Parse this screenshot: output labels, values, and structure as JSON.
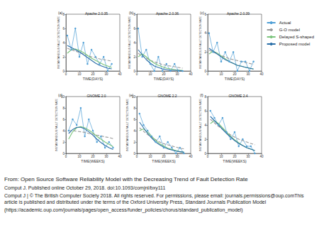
{
  "chart_data": [
    {
      "type": "line",
      "label": "(a)",
      "title": "Apache 2.0.35",
      "x_label": "TIME(DAYS)",
      "y_label": "INSTANTANEOUS FAULT DETECTION RATE",
      "legend": "right",
      "grid": false,
      "x": [
        1,
        4,
        7,
        10,
        13,
        16,
        19,
        22,
        25,
        28,
        31,
        34
      ],
      "xlim": [
        0,
        40
      ],
      "xticks": [
        0,
        10,
        20,
        30,
        40
      ],
      "ylim": [
        0,
        8
      ],
      "yticks": [
        0,
        2,
        4,
        6,
        8
      ],
      "series": [
        {
          "name": "Actual",
          "color": "#4f9fd6",
          "marker": "circle",
          "line_style": "solid",
          "values": [
            5,
            3,
            6,
            2,
            4,
            1,
            3,
            2,
            1,
            2,
            0,
            1
          ]
        },
        {
          "name": "G-O model",
          "color": "#9a9a9a",
          "marker": "none",
          "line_style": "dashed",
          "values": [
            3.2,
            3.0,
            2.8,
            2.6,
            2.4,
            2.2,
            2.0,
            1.9,
            1.7,
            1.6,
            1.5,
            1.4
          ]
        },
        {
          "name": "Delayed S-shaped",
          "color": "#7cc47c",
          "marker": "none",
          "line_style": "solid",
          "values": [
            2.5,
            3.0,
            3.1,
            2.9,
            2.6,
            2.2,
            1.8,
            1.5,
            1.2,
            0.9,
            0.7,
            0.5
          ]
        },
        {
          "name": "Proposed model",
          "color": "#2a6fa8",
          "marker": "none",
          "line_style": "solid",
          "values": [
            3.6,
            3.3,
            3.0,
            2.7,
            2.3,
            1.9,
            1.5,
            1.1,
            0.8,
            0.6,
            0.4,
            0.3
          ]
        }
      ]
    },
    {
      "type": "line",
      "label": "(b)",
      "title": "Apache 2.0.36",
      "x_label": "TIME(DAYS)",
      "y_label": "INSTANTANEOUS FAULT DETECTION RATE",
      "grid": false,
      "x": [
        1,
        4,
        7,
        10,
        13,
        16,
        19,
        22,
        25,
        28,
        31,
        34
      ],
      "xlim": [
        0,
        40
      ],
      "xticks": [
        0,
        10,
        20,
        30,
        40
      ],
      "ylim": [
        0,
        8
      ],
      "yticks": [
        0,
        2,
        4,
        6,
        8
      ],
      "series": [
        {
          "name": "Actual",
          "color": "#4f9fd6",
          "marker": "circle",
          "line_style": "solid",
          "values": [
            6,
            2,
            3,
            1,
            0,
            2,
            0,
            1,
            0,
            1,
            0,
            0
          ]
        },
        {
          "name": "G-O model",
          "color": "#9a9a9a",
          "marker": "none",
          "line_style": "dashed",
          "values": [
            2.5,
            2.1,
            1.8,
            1.5,
            1.3,
            1.1,
            0.9,
            0.8,
            0.7,
            0.6,
            0.5,
            0.4
          ]
        },
        {
          "name": "Delayed S-shaped",
          "color": "#7cc47c",
          "marker": "none",
          "line_style": "solid",
          "values": [
            2.0,
            2.4,
            2.0,
            1.5,
            1.1,
            0.8,
            0.6,
            0.4,
            0.3,
            0.2,
            0.1,
            0.1
          ]
        },
        {
          "name": "Proposed model",
          "color": "#2a6fa8",
          "marker": "none",
          "line_style": "solid",
          "values": [
            3.0,
            2.3,
            1.6,
            1.1,
            0.7,
            0.5,
            0.3,
            0.2,
            0.1,
            0.1,
            0.1,
            0.0
          ]
        }
      ]
    },
    {
      "type": "line",
      "label": "(c)",
      "title": "Apache 2.0.39",
      "x_label": "TIME(DAYS)",
      "y_label": "INSTANTANEOUS FAULT DETECTION RATE",
      "grid": false,
      "x": [
        1,
        4,
        7,
        10,
        13,
        16,
        19,
        22,
        25,
        28,
        31,
        34
      ],
      "xlim": [
        0,
        40
      ],
      "xticks": [
        0,
        10,
        20,
        30,
        40
      ],
      "ylim": [
        0,
        6
      ],
      "yticks": [
        0,
        2,
        4,
        6
      ],
      "series": [
        {
          "name": "Actual",
          "color": "#4f9fd6",
          "marker": "circle",
          "line_style": "solid",
          "values": [
            4,
            2,
            3,
            1,
            2,
            1,
            2,
            0,
            1,
            1,
            0,
            1
          ]
        },
        {
          "name": "G-O model",
          "color": "#9a9a9a",
          "marker": "none",
          "line_style": "dashed",
          "values": [
            2.2,
            2.0,
            1.8,
            1.6,
            1.5,
            1.3,
            1.2,
            1.1,
            1.0,
            0.9,
            0.8,
            0.7
          ]
        },
        {
          "name": "Delayed S-shaped",
          "color": "#7cc47c",
          "marker": "none",
          "line_style": "solid",
          "values": [
            1.8,
            2.1,
            1.9,
            1.6,
            1.3,
            1.0,
            0.8,
            0.6,
            0.5,
            0.4,
            0.3,
            0.2
          ]
        },
        {
          "name": "Proposed model",
          "color": "#2a6fa8",
          "marker": "none",
          "line_style": "solid",
          "values": [
            2.4,
            2.1,
            1.8,
            1.5,
            1.2,
            1.0,
            0.8,
            0.6,
            0.5,
            0.4,
            0.3,
            0.2
          ]
        }
      ]
    },
    {
      "type": "line",
      "label": "(d)",
      "title": "GNOME 2.0",
      "x_label": "TIME(WEEKS)",
      "y_label": "INSTANTANEOUS FAULT DETECTION RATE",
      "grid": false,
      "x": [
        2,
        5,
        8,
        11,
        14,
        17,
        20,
        23,
        26,
        29,
        32,
        35
      ],
      "xlim": [
        0,
        40
      ],
      "xticks": [
        0,
        10,
        20,
        30,
        40
      ],
      "ylim": [
        0,
        10
      ],
      "yticks": [
        0,
        2,
        4,
        6,
        8,
        10
      ],
      "series": [
        {
          "name": "Actual",
          "color": "#4f9fd6",
          "marker": "circle",
          "line_style": "solid",
          "values": [
            4,
            6,
            5,
            8,
            3,
            6,
            4,
            2,
            3,
            1,
            2,
            1
          ]
        },
        {
          "name": "G-O model",
          "color": "#9a9a9a",
          "marker": "none",
          "line_style": "dashed",
          "values": [
            4.0,
            4.0,
            3.9,
            3.8,
            3.7,
            3.5,
            3.4,
            3.2,
            3.1,
            2.9,
            2.8,
            2.6
          ]
        },
        {
          "name": "Delayed S-shaped",
          "color": "#7cc47c",
          "marker": "none",
          "line_style": "solid",
          "values": [
            2.5,
            3.8,
            4.5,
            4.7,
            4.5,
            4.1,
            3.6,
            3.0,
            2.5,
            2.0,
            1.6,
            1.2
          ]
        },
        {
          "name": "Proposed model",
          "color": "#2a6fa8",
          "marker": "none",
          "line_style": "solid",
          "values": [
            3.5,
            4.2,
            4.6,
            4.6,
            4.3,
            3.8,
            3.2,
            2.5,
            1.9,
            1.4,
            1.0,
            0.7
          ]
        }
      ]
    },
    {
      "type": "line",
      "label": "(e)",
      "title": "GNOME 2.2",
      "x_label": "TIME(WEEKS)",
      "y_label": "INSTANTANEOUS FAULT DETECTION RATE",
      "grid": false,
      "x": [
        2,
        5,
        8,
        11,
        14,
        17,
        20,
        23,
        26,
        29,
        32,
        35
      ],
      "xlim": [
        0,
        40
      ],
      "xticks": [
        0,
        10,
        20,
        30,
        40
      ],
      "ylim": [
        0,
        10
      ],
      "yticks": [
        0,
        2,
        4,
        6,
        8,
        10
      ],
      "series": [
        {
          "name": "Actual",
          "color": "#4f9fd6",
          "marker": "circle",
          "line_style": "solid",
          "values": [
            7,
            5,
            4,
            3,
            2,
            3,
            1,
            2,
            1,
            0,
            1,
            0
          ]
        },
        {
          "name": "G-O model",
          "color": "#9a9a9a",
          "marker": "none",
          "line_style": "dashed",
          "values": [
            4.5,
            3.9,
            3.3,
            2.8,
            2.4,
            2.0,
            1.7,
            1.5,
            1.3,
            1.1,
            0.9,
            0.8
          ]
        },
        {
          "name": "Delayed S-shaped",
          "color": "#7cc47c",
          "marker": "none",
          "line_style": "solid",
          "values": [
            4.0,
            4.3,
            3.7,
            3.0,
            2.3,
            1.7,
            1.3,
            0.9,
            0.7,
            0.5,
            0.3,
            0.2
          ]
        },
        {
          "name": "Proposed model",
          "color": "#2a6fa8",
          "marker": "none",
          "line_style": "solid",
          "values": [
            5.5,
            4.5,
            3.5,
            2.7,
            2.0,
            1.5,
            1.1,
            0.8,
            0.6,
            0.4,
            0.3,
            0.2
          ]
        }
      ]
    },
    {
      "type": "line",
      "label": "(f)",
      "title": "GNOME 2.4",
      "x_label": "TIME(WEEKS)",
      "y_label": "INSTANTANEOUS FAULT DETECTION RATE",
      "grid": false,
      "x": [
        2,
        5,
        8,
        11,
        14,
        17,
        20,
        23,
        26,
        29,
        32,
        35
      ],
      "xlim": [
        0,
        40
      ],
      "xticks": [
        0,
        10,
        20,
        30,
        40
      ],
      "ylim": [
        0,
        8
      ],
      "yticks": [
        0,
        2,
        4,
        6,
        8
      ],
      "series": [
        {
          "name": "Actual",
          "color": "#4f9fd6",
          "marker": "circle",
          "line_style": "solid",
          "values": [
            6,
            5,
            4,
            5,
            3,
            2,
            3,
            1,
            2,
            1,
            1,
            0
          ]
        },
        {
          "name": "G-O model",
          "color": "#9a9a9a",
          "marker": "none",
          "line_style": "dashed",
          "values": [
            4.8,
            4.3,
            3.8,
            3.4,
            3.0,
            2.6,
            2.3,
            2.0,
            1.8,
            1.6,
            1.4,
            1.2
          ]
        },
        {
          "name": "Delayed S-shaped",
          "color": "#7cc47c",
          "marker": "none",
          "line_style": "solid",
          "values": [
            4.2,
            4.6,
            4.2,
            3.6,
            3.0,
            2.4,
            1.9,
            1.5,
            1.1,
            0.8,
            0.6,
            0.4
          ]
        },
        {
          "name": "Proposed model",
          "color": "#2a6fa8",
          "marker": "none",
          "line_style": "solid",
          "values": [
            5.2,
            4.6,
            4.0,
            3.4,
            2.8,
            2.3,
            1.8,
            1.4,
            1.1,
            0.8,
            0.6,
            0.4
          ]
        }
      ]
    }
  ],
  "caption": {
    "source": "From: Open Source Software Reliability Model with the Decreasing Trend of Fault Detection Rate",
    "journal": "Comput J. Published online  October 29, 2018. doi:10.1093/comjnl/bxy111",
    "copyright": "Comput J | © The British Computer Society 2018. All rights reserved. For permissions, please email: journals.permissions@oup.comThis article is published and distributed under the terms of the Oxford University Press, Standard Journals Publication Model",
    "url": "(https://academic.oup.com/journals/pages/open_access/funder_policies/chorus/standard_publication_model)"
  }
}
